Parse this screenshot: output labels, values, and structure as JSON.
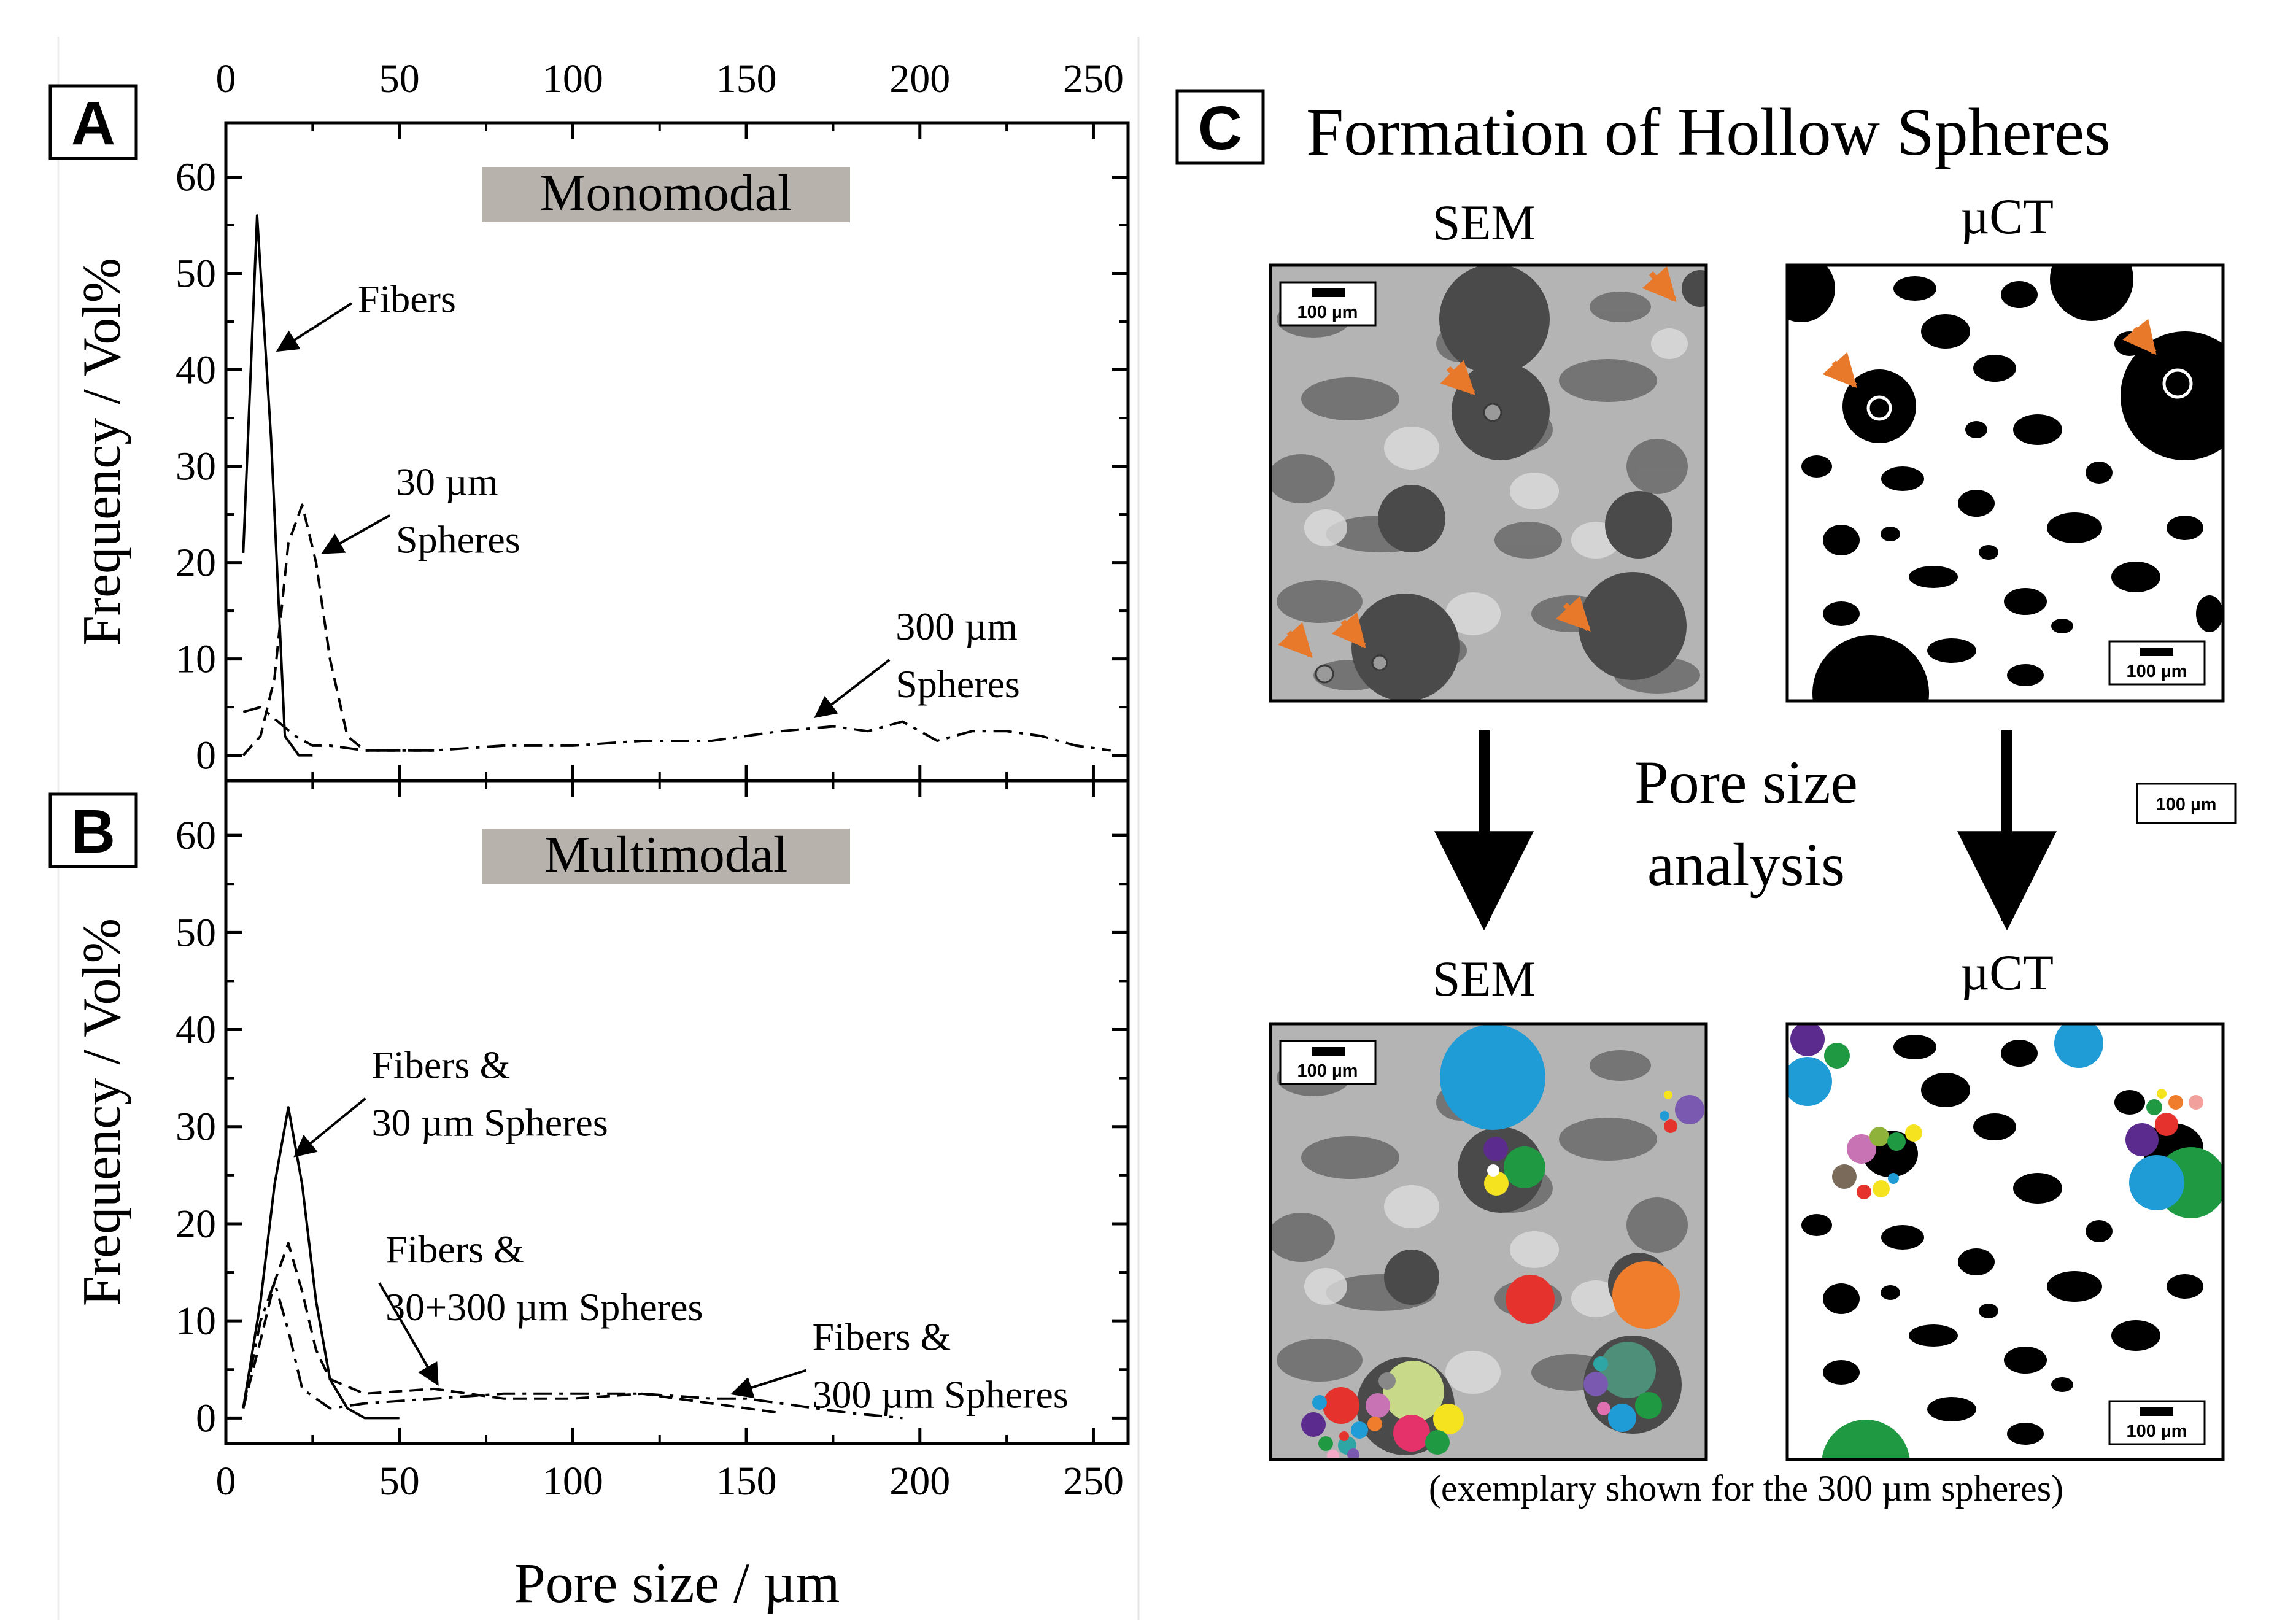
{
  "figure": {
    "panel_labels": {
      "a": "A",
      "b": "B",
      "c": "C"
    },
    "panel_c": {
      "title": "Formation of Hollow Spheres",
      "top_left_label": "SEM",
      "top_right_label": "µCT",
      "bottom_left_label": "SEM",
      "bottom_right_label": "µCT",
      "middle_text_line1": "Pore size",
      "middle_text_line2": "analysis",
      "scale_bar_label": "100 µm",
      "caption": "(exemplary shown for the 300 µm spheres)"
    }
  },
  "colors": {
    "header_box": "#b7b3ac",
    "sem_bg": "#9a9a9a",
    "arrow_orange": "#e8782a"
  },
  "chart_data": [
    {
      "type": "line",
      "panel": "A",
      "title": "Monomodal",
      "xlabel": "Pore size / µm",
      "ylabel": "Frequency / Vol%",
      "xlim": [
        0,
        260
      ],
      "ylim": [
        -2,
        65
      ],
      "x_ticks": [
        0,
        50,
        100,
        150,
        200,
        250
      ],
      "x_tick_labels": [
        "0",
        "50",
        "100",
        "150",
        "200",
        "250"
      ],
      "y_ticks": [
        0,
        10,
        20,
        30,
        40,
        50,
        60
      ],
      "y_tick_labels": [
        "0",
        "10",
        "20",
        "30",
        "40",
        "50",
        "60"
      ],
      "series": [
        {
          "name": "Fibers",
          "style": "solid",
          "x": [
            5,
            9,
            13,
            17,
            21,
            25
          ],
          "y": [
            21,
            56,
            33,
            2,
            0,
            0
          ]
        },
        {
          "name": "30 µm Spheres",
          "style": "dashed",
          "x": [
            5,
            10,
            14,
            18,
            22,
            26,
            30,
            35,
            40,
            50,
            60
          ],
          "y": [
            0,
            2,
            8,
            22,
            26,
            20,
            10,
            2,
            0.5,
            0.5,
            0.5
          ]
        },
        {
          "name": "300 µm Spheres",
          "style": "dashdot",
          "x": [
            5,
            10,
            15,
            20,
            25,
            30,
            40,
            60,
            80,
            100,
            120,
            140,
            160,
            175,
            185,
            195,
            205,
            215,
            225,
            235,
            245,
            255
          ],
          "y": [
            4.5,
            5,
            3.5,
            2,
            1,
            1,
            0.5,
            0.5,
            1,
            1,
            1.5,
            1.5,
            2.5,
            3,
            2.5,
            3.5,
            1.5,
            2.5,
            2.5,
            2,
            1,
            0.5
          ]
        }
      ],
      "annotations": [
        {
          "lines": [
            "Fibers"
          ],
          "x": 38,
          "y": 46,
          "arrow_to": [
            15,
            42
          ]
        },
        {
          "lines": [
            "30 µm",
            "Spheres"
          ],
          "x": 49,
          "y": 27,
          "arrow_to": [
            28,
            21
          ]
        },
        {
          "lines": [
            "300 µm",
            "Spheres"
          ],
          "x": 193,
          "y": 12,
          "arrow_to": [
            170,
            4
          ]
        }
      ]
    },
    {
      "type": "line",
      "panel": "B",
      "title": "Multimodal",
      "xlabel": "Pore size / µm",
      "ylabel": "Frequency / Vol%",
      "xlim": [
        0,
        260
      ],
      "ylim": [
        -2,
        65
      ],
      "x_ticks": [
        0,
        50,
        100,
        150,
        200,
        250
      ],
      "x_tick_labels": [
        "0",
        "50",
        "100",
        "150",
        "200",
        "250"
      ],
      "y_ticks": [
        0,
        10,
        20,
        30,
        40,
        50,
        60
      ],
      "y_tick_labels": [
        "0",
        "10",
        "20",
        "30",
        "40",
        "50",
        "60"
      ],
      "series": [
        {
          "name": "Fibers & 30 µm Spheres",
          "style": "solid",
          "x": [
            5,
            10,
            14,
            18,
            22,
            26,
            30,
            35,
            40,
            50
          ],
          "y": [
            1,
            12,
            24,
            32,
            24,
            12,
            4,
            1,
            0,
            0
          ]
        },
        {
          "name": "Fibers & 30+300 µm Spheres",
          "style": "dashed",
          "x": [
            5,
            10,
            14,
            18,
            22,
            26,
            30,
            40,
            60,
            80,
            100,
            120,
            140,
            150,
            160
          ],
          "y": [
            1,
            8,
            14,
            18,
            13,
            7,
            4,
            2.5,
            3,
            2,
            2,
            2.5,
            1.5,
            1,
            0.5
          ]
        },
        {
          "name": "Fibers & 300 µm Spheres",
          "style": "dashdot",
          "x": [
            5,
            10,
            14,
            18,
            22,
            30,
            40,
            60,
            80,
            100,
            120,
            140,
            150,
            160,
            180,
            195
          ],
          "y": [
            1,
            10,
            14,
            9,
            3,
            1,
            1.5,
            2,
            2.5,
            2.5,
            2.5,
            2,
            2,
            1.5,
            0.5,
            0
          ]
        }
      ],
      "annotations": [
        {
          "lines": [
            "Fibers &",
            "30 µm Spheres"
          ],
          "x": 42,
          "y": 35,
          "arrow_to": [
            20,
            27
          ]
        },
        {
          "lines": [
            "Fibers &",
            "30+300 µm Spheres"
          ],
          "x": 46,
          "y": 16,
          "arrow_to": [
            61,
            3.5
          ]
        },
        {
          "lines": [
            "Fibers &",
            "300 µm Spheres"
          ],
          "x": 169,
          "y": 7,
          "arrow_to": [
            146,
            2.5
          ]
        }
      ]
    }
  ]
}
